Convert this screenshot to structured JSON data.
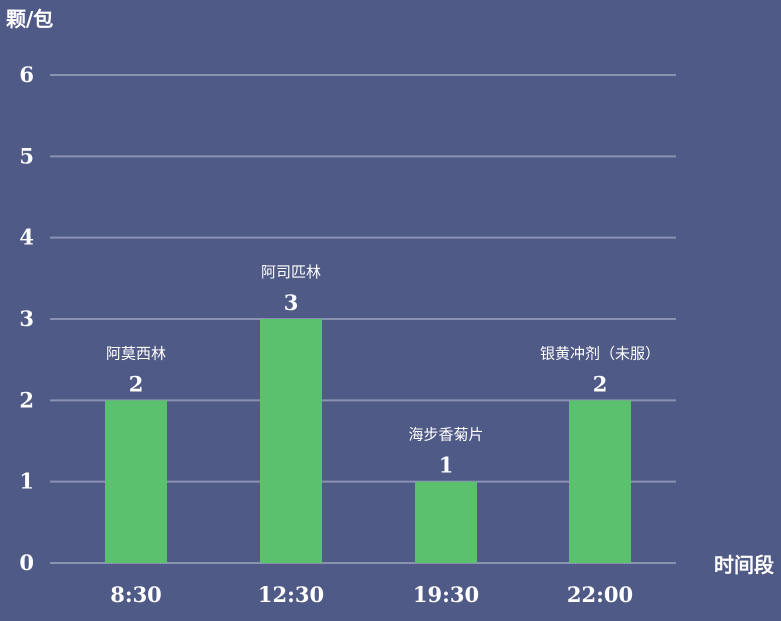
{
  "chart_data": {
    "type": "bar",
    "ylabel": "颗/包",
    "xlabel": "时间段",
    "categories": [
      "8:30",
      "12:30",
      "19:30",
      "22:00"
    ],
    "values": [
      2,
      3,
      1,
      2
    ],
    "annotations": [
      "阿莫西林",
      "阿司匹林",
      "海步香菊片",
      "银黄冲剂（未服）"
    ],
    "yticks": [
      0,
      1,
      2,
      3,
      4,
      5,
      6
    ],
    "ylim": [
      0,
      6
    ],
    "grid": true,
    "bar_color": "#5bc16e",
    "background": "#4f5a87"
  }
}
